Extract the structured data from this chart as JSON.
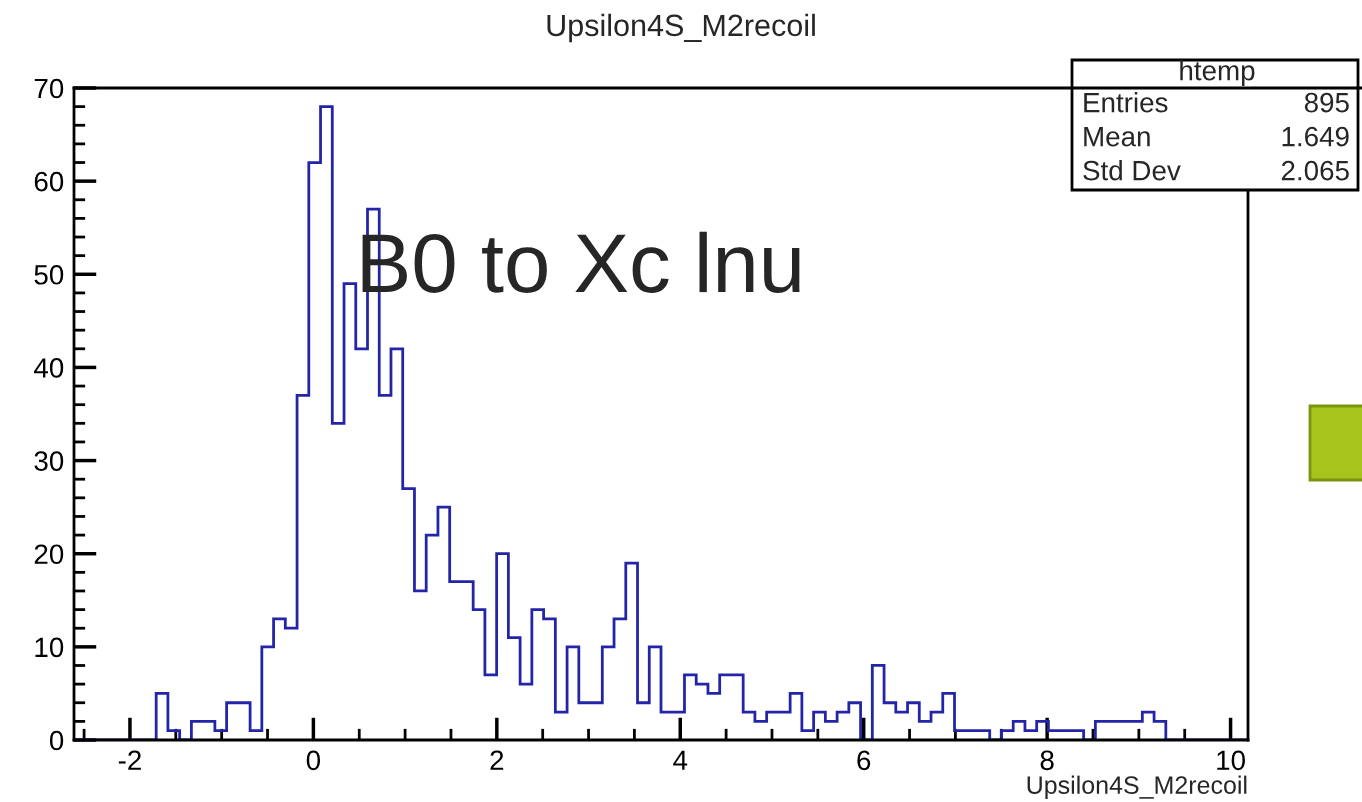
{
  "chart_data": {
    "type": "histogram",
    "title": "Upsilon4S_M2recoil",
    "xlabel": "Upsilon4S_M2recoil",
    "color": "#2424a8",
    "bins": [
      -2.61,
      -2.482,
      -2.354,
      -2.226,
      -2.098,
      -1.97,
      -1.842,
      -1.714,
      -1.586,
      -1.458,
      -1.33,
      -1.202,
      -1.074,
      -0.946,
      -0.818,
      -0.69,
      -0.562,
      -0.434,
      -0.306,
      -0.178,
      -0.05,
      0.078,
      0.206,
      0.334,
      0.462,
      0.59,
      0.718,
      0.846,
      0.974,
      1.102,
      1.23,
      1.358,
      1.486,
      1.614,
      1.742,
      1.87,
      1.998,
      2.126,
      2.254,
      2.382,
      2.51,
      2.638,
      2.766,
      2.894,
      3.022,
      3.15,
      3.278,
      3.406,
      3.534,
      3.662,
      3.79,
      3.918,
      4.046,
      4.174,
      4.302,
      4.43,
      4.558,
      4.686,
      4.814,
      4.942,
      5.07,
      5.198,
      5.326,
      5.454,
      5.582,
      5.71,
      5.838,
      5.966,
      6.094,
      6.222,
      6.35,
      6.478,
      6.606,
      6.734,
      6.862,
      6.99,
      7.118,
      7.246,
      7.374,
      7.502,
      7.63,
      7.758,
      7.886,
      8.014,
      8.142,
      8.27,
      8.398,
      8.526,
      8.654,
      8.782,
      8.91,
      9.038,
      9.166,
      9.294,
      9.422,
      9.55,
      9.678,
      9.806,
      9.934,
      10.062,
      10.19
    ],
    "values": [
      0,
      0,
      0,
      0,
      0,
      0,
      0,
      5,
      1,
      0,
      2,
      2,
      1,
      4,
      4,
      1,
      10,
      13,
      12,
      37,
      62,
      68,
      34,
      49,
      42,
      57,
      37,
      42,
      27,
      16,
      22,
      25,
      17,
      17,
      14,
      7,
      20,
      11,
      6,
      14,
      13,
      3,
      10,
      4,
      4,
      10,
      13,
      19,
      4,
      10,
      3,
      3,
      7,
      6,
      5,
      7,
      7,
      3,
      2,
      3,
      3,
      5,
      1,
      3,
      2,
      3,
      4,
      0,
      8,
      4,
      3,
      4,
      2,
      3,
      5,
      1,
      1,
      1,
      0,
      1,
      2,
      1,
      2,
      1,
      1,
      1,
      0,
      2,
      2,
      2,
      2,
      3,
      2,
      0,
      0,
      0,
      0,
      0,
      0,
      0
    ],
    "xlim": [
      -2.61,
      10.19
    ],
    "ylim": [
      0,
      70
    ],
    "xticks": [
      -2,
      0,
      2,
      4,
      6,
      8,
      10
    ],
    "yticks": [
      0,
      10,
      20,
      30,
      40,
      50,
      60,
      70
    ],
    "annotations": [
      "htemp",
      "Entries",
      "895",
      "Mean",
      "1.649",
      "Std Dev",
      "2.065",
      "B0 to Xc lnu"
    ]
  }
}
